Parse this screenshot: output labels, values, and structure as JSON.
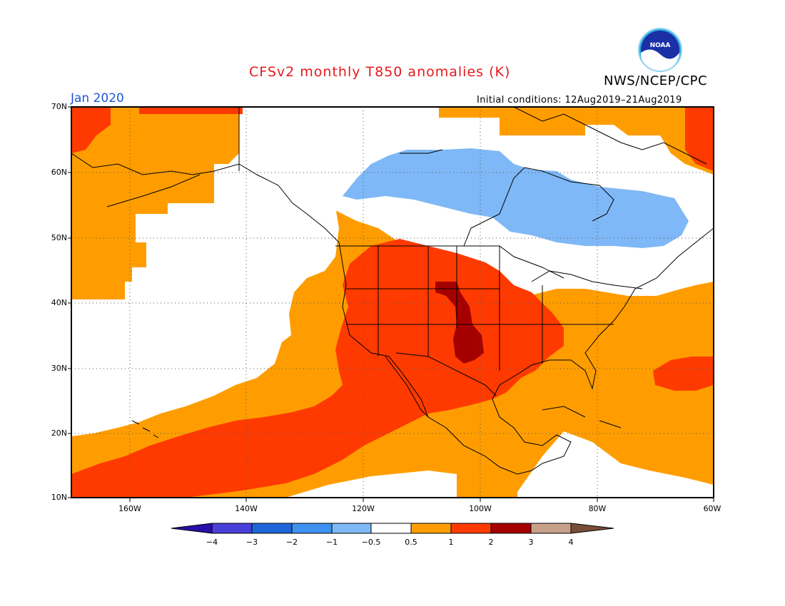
{
  "title": "CFSv2 monthly T850 anomalies (K)",
  "agency": "NWS/NCEP/CPC",
  "logo_text": "NOAA",
  "valid_month": "Jan 2020",
  "initial_conditions": "Initial conditions: 12Aug2019–21Aug2019",
  "lat_labels": [
    "70N",
    "60N",
    "50N",
    "40N",
    "30N",
    "20N",
    "10N"
  ],
  "lon_labels": [
    "160W",
    "140W",
    "120W",
    "100W",
    "80W",
    "60W"
  ],
  "colorbar": {
    "labels": [
      "−4",
      "−3",
      "−2",
      "−1",
      "−0.5",
      "0.5",
      "1",
      "2",
      "3",
      "4"
    ],
    "colors": [
      "#2a0ea8",
      "#4a3fd8",
      "#1f66d9",
      "#3f92f0",
      "#7fb8f6",
      "#ffffff",
      "#ff9d00",
      "#ff3a00",
      "#a50000",
      "#c7a08a",
      "#7a4d3a"
    ]
  },
  "chart_data": {
    "type": "heatmap",
    "variable": "T850 anomaly",
    "units": "K",
    "lat_range": [
      10,
      70
    ],
    "lon_range": [
      -170,
      -60
    ],
    "levels": [
      -4,
      -3,
      -2,
      -1,
      -0.5,
      0.5,
      1,
      2,
      3,
      4
    ]
  }
}
